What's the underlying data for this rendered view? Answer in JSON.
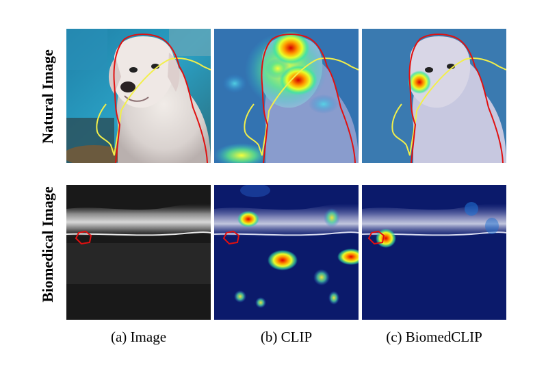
{
  "row_labels": {
    "top": "Natural Image",
    "bottom": "Biomedical Image"
  },
  "captions": {
    "a": "(a) Image",
    "b": "(b) CLIP",
    "c": "(c) BiomedCLIP"
  },
  "colors": {
    "outline_red": "#e01010",
    "outline_yellow": "#f2ef4a",
    "scan_background": "#111111",
    "heatmap_base": "#0b1a6b"
  }
}
